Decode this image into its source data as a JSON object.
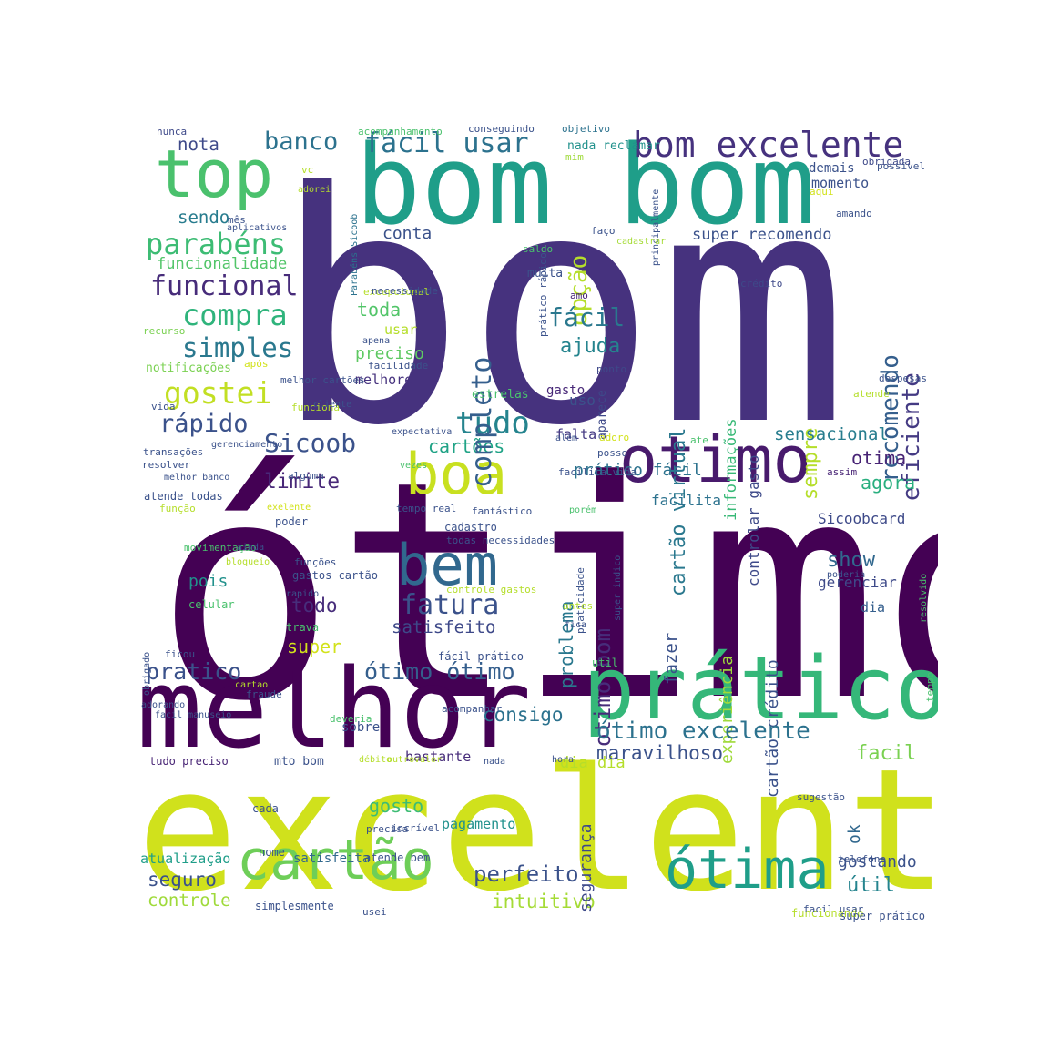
{
  "words": [
    {
      "text": "bom",
      "color": "#46327e"
    },
    {
      "text": "ótimo",
      "color": "#440154"
    },
    {
      "text": "excelente",
      "color": "#d0e11c"
    },
    {
      "text": "bom bom",
      "color": "#1f9e89"
    },
    {
      "text": "melhor",
      "color": "#440154"
    },
    {
      "text": "prático",
      "color": "#35b779"
    },
    {
      "text": "top",
      "color": "#4ac16d"
    },
    {
      "text": "otimo",
      "color": "#481a6c"
    },
    {
      "text": "cartão",
      "color": "#6ece58"
    },
    {
      "text": "ótima",
      "color": "#1f9e89"
    },
    {
      "text": "boa",
      "color": "#c8e020"
    },
    {
      "text": "bem",
      "color": "#31688e"
    },
    {
      "text": "bom excelente",
      "color": "#46327e"
    },
    {
      "text": "fácil usar",
      "color": "#2c728e"
    },
    {
      "text": "parabéns",
      "color": "#3dbc74"
    },
    {
      "text": "funcional",
      "color": "#472c7a"
    },
    {
      "text": "compra",
      "color": "#2fb47c"
    },
    {
      "text": "simples",
      "color": "#2a788e"
    },
    {
      "text": "gostei",
      "color": "#c2df23"
    },
    {
      "text": "rápido",
      "color": "#3b528b"
    },
    {
      "text": "Sicoob",
      "color": "#3b528b"
    },
    {
      "text": "limite",
      "color": "#482878"
    },
    {
      "text": "tudo",
      "color": "#25848e"
    },
    {
      "text": "cartões",
      "color": "#20a386"
    },
    {
      "text": "banco",
      "color": "#2c728e"
    },
    {
      "text": "nota",
      "color": "#3e4989"
    },
    {
      "text": "sendo",
      "color": "#287c8e"
    },
    {
      "text": "funcionalidade",
      "color": "#52c569"
    },
    {
      "text": "completo",
      "color": "#355f8d"
    },
    {
      "text": "opção",
      "color": "#b5de2b"
    },
    {
      "text": "conta",
      "color": "#3b528b"
    },
    {
      "text": "fácil",
      "color": "#2a788e"
    },
    {
      "text": "ajuda",
      "color": "#25848e"
    },
    {
      "text": "toda",
      "color": "#52c569"
    },
    {
      "text": "preciso",
      "color": "#5ec962"
    },
    {
      "text": "melhore",
      "color": "#46327e"
    },
    {
      "text": "cartão virtual",
      "color": "#2a788e"
    },
    {
      "text": "recomendo",
      "color": "#355f8d"
    },
    {
      "text": "eficiente",
      "color": "#443a83"
    },
    {
      "text": "super recomendo",
      "color": "#3b528b"
    },
    {
      "text": "sempre",
      "color": "#b5de2b"
    },
    {
      "text": "informações",
      "color": "#38b977"
    },
    {
      "text": "controlar gasto",
      "color": "#3e4a89"
    },
    {
      "text": "sensacional",
      "color": "#287d8e"
    },
    {
      "text": "otima",
      "color": "#482475"
    },
    {
      "text": "agora",
      "color": "#29af7f"
    },
    {
      "text": "Sicoobcard",
      "color": "#3e4a89"
    },
    {
      "text": "show",
      "color": "#31688e"
    },
    {
      "text": "gerenciar",
      "color": "#3e4a89"
    },
    {
      "text": "dia",
      "color": "#355f8d"
    },
    {
      "text": "facilita",
      "color": "#2c728e"
    },
    {
      "text": "cartão crédito",
      "color": "#3b528b"
    },
    {
      "text": "experiência",
      "color": "#9fda3a"
    },
    {
      "text": "fazer",
      "color": "#3b528b"
    },
    {
      "text": "problema",
      "color": "#2a788e"
    },
    {
      "text": "otimo bom",
      "color": "#472c7a"
    },
    {
      "text": "fatura",
      "color": "#3b528b"
    },
    {
      "text": "satisfeito",
      "color": "#3e4989"
    },
    {
      "text": "pois",
      "color": "#21918c"
    },
    {
      "text": "todo",
      "color": "#472d7b"
    },
    {
      "text": "super",
      "color": "#d2e21b"
    },
    {
      "text": "pratico",
      "color": "#3b528b"
    },
    {
      "text": "ótimo ótimo",
      "color": "#355f8d"
    },
    {
      "text": "consigo",
      "color": "#2c728e"
    },
    {
      "text": "ótimo excelente",
      "color": "#2c728e"
    },
    {
      "text": "maravilhoso",
      "color": "#3b528b"
    },
    {
      "text": "facil",
      "color": "#7ad151"
    },
    {
      "text": "gosto",
      "color": "#3dbc74"
    },
    {
      "text": "pagamento",
      "color": "#21918c"
    },
    {
      "text": "perfeito",
      "color": "#3b528b"
    },
    {
      "text": "intuitivo",
      "color": "#a5db36"
    },
    {
      "text": "útil",
      "color": "#25848e"
    },
    {
      "text": "gostando",
      "color": "#3b528b"
    },
    {
      "text": "seguro",
      "color": "#3b528b"
    },
    {
      "text": "controle",
      "color": "#9fda3a"
    },
    {
      "text": "atualização",
      "color": "#1f9e89"
    },
    {
      "text": "satisfeita",
      "color": "#31688e"
    },
    {
      "text": "bastante",
      "color": "#472c7a"
    },
    {
      "text": "dia dia",
      "color": "#b5de2b"
    },
    {
      "text": "ok",
      "color": "#31688e"
    },
    {
      "text": "segurança",
      "color": "#3e4a89"
    },
    {
      "text": "prático fácil",
      "color": "#2c728e"
    },
    {
      "text": "falta",
      "color": "#443a83"
    },
    {
      "text": "uso",
      "color": "#3b528b"
    },
    {
      "text": "usar",
      "color": "#b5de2b"
    },
    {
      "text": "gasto",
      "color": "#482878"
    },
    {
      "text": "aparece",
      "color": "#3e4989"
    },
    {
      "text": "estrelas",
      "color": "#4ac16d"
    },
    {
      "text": "ponto",
      "color": "#3e4989"
    },
    {
      "text": "nunca",
      "color": "#3e4989"
    },
    {
      "text": "acompanhamento",
      "color": "#4ac16d"
    },
    {
      "text": "conseguindo",
      "color": "#3b528b"
    },
    {
      "text": "objetivo",
      "color": "#2c728e"
    },
    {
      "text": "mim",
      "color": "#9fda3a"
    },
    {
      "text": "nada reclamar",
      "color": "#21918c"
    },
    {
      "text": "vc",
      "color": "#b5de2b"
    },
    {
      "text": "adorei",
      "color": "#b5de2b"
    },
    {
      "text": "mês",
      "color": "#3b528b"
    },
    {
      "text": "aplicativos",
      "color": "#3b528b"
    },
    {
      "text": "Parabéns Sicoob",
      "color": "#2c728e"
    },
    {
      "text": "prático rápido",
      "color": "#3b528b"
    },
    {
      "text": "principalmente",
      "color": "#3b528b"
    },
    {
      "text": "obrigada",
      "color": "#3e4989"
    },
    {
      "text": "demais",
      "color": "#3b528b"
    },
    {
      "text": "momento",
      "color": "#3b528b"
    },
    {
      "text": "possivel",
      "color": "#3b528b"
    },
    {
      "text": "aqui",
      "color": "#d2e21b"
    },
    {
      "text": "amando",
      "color": "#3b528b"
    },
    {
      "text": "faço",
      "color": "#3b528b"
    },
    {
      "text": "cadastrar",
      "color": "#a5db36"
    },
    {
      "text": "saldo",
      "color": "#4ac16d"
    },
    {
      "text": "muita",
      "color": "#3b528b"
    },
    {
      "text": "excepcional",
      "color": "#b5de2b"
    },
    {
      "text": "necessidade",
      "color": "#3b528b"
    },
    {
      "text": "amo",
      "color": "#482475"
    },
    {
      "text": "crédito",
      "color": "#3e4989"
    },
    {
      "text": "recurso",
      "color": "#7ad151"
    },
    {
      "text": "apena",
      "color": "#3b528b"
    },
    {
      "text": "facilidade",
      "color": "#3b528b"
    },
    {
      "text": "notificações",
      "color": "#7ad151"
    },
    {
      "text": "após",
      "color": "#d2e21b"
    },
    {
      "text": "melhor cartões",
      "color": "#3b528b"
    },
    {
      "text": "vida",
      "color": "#3b528b"
    },
    {
      "text": "funciona",
      "color": "#b5de2b"
    },
    {
      "text": "despesas",
      "color": "#3b528b"
    },
    {
      "text": "atende",
      "color": "#b5de2b"
    },
    {
      "text": "cliente",
      "color": "#3b528b"
    },
    {
      "text": "gerenciamento",
      "color": "#3b528b"
    },
    {
      "text": "expectativa",
      "color": "#3b528b"
    },
    {
      "text": "adoro",
      "color": "#d2e21b"
    },
    {
      "text": "ate",
      "color": "#4ac16d"
    },
    {
      "text": "além",
      "color": "#3b528b"
    },
    {
      "text": "posso",
      "color": "#3b528b"
    },
    {
      "text": "transações",
      "color": "#3b528b"
    },
    {
      "text": "resolver",
      "color": "#3b528b"
    },
    {
      "text": "melhor banco",
      "color": "#3b528b"
    },
    {
      "text": "alguma",
      "color": "#3b528b"
    },
    {
      "text": "vezes",
      "color": "#4ac16d"
    },
    {
      "text": "facilita vida",
      "color": "#3b528b"
    },
    {
      "text": "assim",
      "color": "#482475"
    },
    {
      "text": "atende todas",
      "color": "#3b528b"
    },
    {
      "text": "função",
      "color": "#b5de2b"
    },
    {
      "text": "exelente",
      "color": "#d2e21b"
    },
    {
      "text": "tempo real",
      "color": "#3b528b"
    },
    {
      "text": "fantástico",
      "color": "#3b528b"
    },
    {
      "text": "porém",
      "color": "#4ac16d"
    },
    {
      "text": "poder",
      "color": "#3b528b"
    },
    {
      "text": "cadastro",
      "color": "#3b528b"
    },
    {
      "text": "todas necessidades",
      "color": "#3b528b"
    },
    {
      "text": "obrigado",
      "color": "#3b528b"
    },
    {
      "text": "movimentação",
      "color": "#4ac16d"
    },
    {
      "text": "bloqueio",
      "color": "#b5de2b"
    },
    {
      "text": "ainda",
      "color": "#3b528b"
    },
    {
      "text": "funções",
      "color": "#3b528b"
    },
    {
      "text": "gastos cartão",
      "color": "#3b528b"
    },
    {
      "text": "praticidade",
      "color": "#3b528b"
    },
    {
      "text": "super indico",
      "color": "#3b528b"
    },
    {
      "text": "controle gastos",
      "color": "#b5de2b"
    },
    {
      "text": "resolvido",
      "color": "#4ac16d"
    },
    {
      "text": "poderia",
      "color": "#3b528b"
    },
    {
      "text": "celular",
      "color": "#4ac16d"
    },
    {
      "text": "rapido",
      "color": "#3b528b"
    },
    {
      "text": "trava",
      "color": "#4ac16d"
    },
    {
      "text": "antes",
      "color": "#b5de2b"
    },
    {
      "text": "fica",
      "color": "#3b528b"
    },
    {
      "text": "ficou",
      "color": "#3b528b"
    },
    {
      "text": "fácil prático",
      "color": "#3b528b"
    },
    {
      "text": "util",
      "color": "#4ac16d"
    },
    {
      "text": "cartao",
      "color": "#b5de2b"
    },
    {
      "text": "adorando",
      "color": "#3b528b"
    },
    {
      "text": "facil manuseio",
      "color": "#3b528b"
    },
    {
      "text": "fraude",
      "color": "#3b528b"
    },
    {
      "text": "acompanhar",
      "color": "#3b528b"
    },
    {
      "text": "sobre",
      "color": "#3b528b"
    },
    {
      "text": "tempo",
      "color": "#4ac16d"
    },
    {
      "text": "deveria",
      "color": "#4ac16d"
    },
    {
      "text": "tudo preciso",
      "color": "#482475"
    },
    {
      "text": "mto bom",
      "color": "#3b528b"
    },
    {
      "text": "débito",
      "color": "#b5de2b"
    },
    {
      "text": "outro",
      "color": "#b5de2b"
    },
    {
      "text": "valor",
      "color": "#b5de2b"
    },
    {
      "text": "nada",
      "color": "#3b528b"
    },
    {
      "text": "hora",
      "color": "#3b528b"
    },
    {
      "text": "sugestão",
      "color": "#3b528b"
    },
    {
      "text": "cada",
      "color": "#3b528b"
    },
    {
      "text": "precisa",
      "color": "#3b528b"
    },
    {
      "text": "incrível",
      "color": "#3b528b"
    },
    {
      "text": "nome",
      "color": "#3b528b"
    },
    {
      "text": "atende bem",
      "color": "#3b528b"
    },
    {
      "text": "simplesmente",
      "color": "#3b528b"
    },
    {
      "text": "usei",
      "color": "#3b528b"
    },
    {
      "text": "telefone",
      "color": "#3b528b"
    },
    {
      "text": "funcionando",
      "color": "#b5de2b"
    },
    {
      "text": "facil usar",
      "color": "#3b528b"
    },
    {
      "text": "super prático",
      "color": "#3b528b"
    },
    {
      "text": "atendimento",
      "color": "#b5de2b"
    },
    {
      "text": "acesso",
      "color": "#3b528b"
    },
    {
      "text": "amei",
      "color": "#3b528b"
    },
    {
      "text": "funciona bem",
      "color": "#3b528b"
    }
  ]
}
